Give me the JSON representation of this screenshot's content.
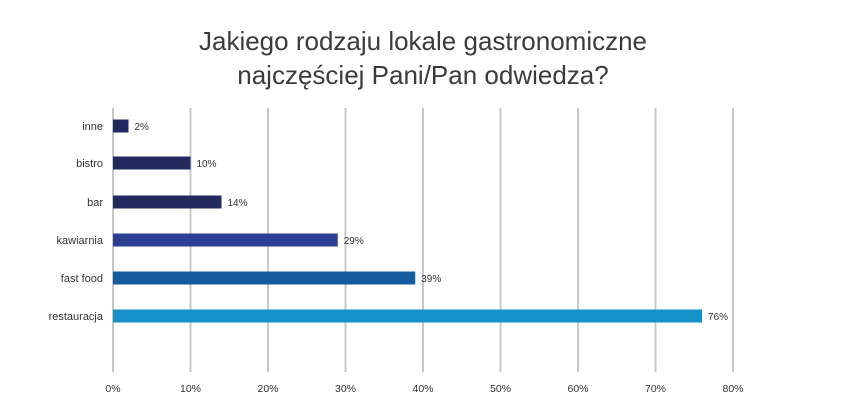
{
  "chart_data": {
    "type": "bar",
    "orientation": "horizontal",
    "title_lines": [
      "Jakiego rodzaju lokale gastronomiczne",
      "najczęściej Pani/Pan odwiedza?"
    ],
    "categories": [
      "inne",
      "bistro",
      "bar",
      "kawiarnia",
      "fast food",
      "restauracja"
    ],
    "values": [
      2,
      10,
      14,
      29,
      39,
      76
    ],
    "value_labels": [
      "2%",
      "10%",
      "14%",
      "29%",
      "39%",
      "76%"
    ],
    "bar_colors": [
      "#232a5e",
      "#232a5e",
      "#232a5e",
      "#2a3e92",
      "#145c9e",
      "#1690c9"
    ],
    "x_ticks": [
      0,
      10,
      20,
      30,
      40,
      50,
      60,
      70,
      80
    ],
    "x_tick_labels": [
      "0%",
      "10%",
      "20%",
      "30%",
      "40%",
      "50%",
      "60%",
      "70%",
      "80%"
    ],
    "xlim": [
      0,
      80
    ],
    "grid": true,
    "legend": "none",
    "grid_color": "#c8c8c8"
  }
}
